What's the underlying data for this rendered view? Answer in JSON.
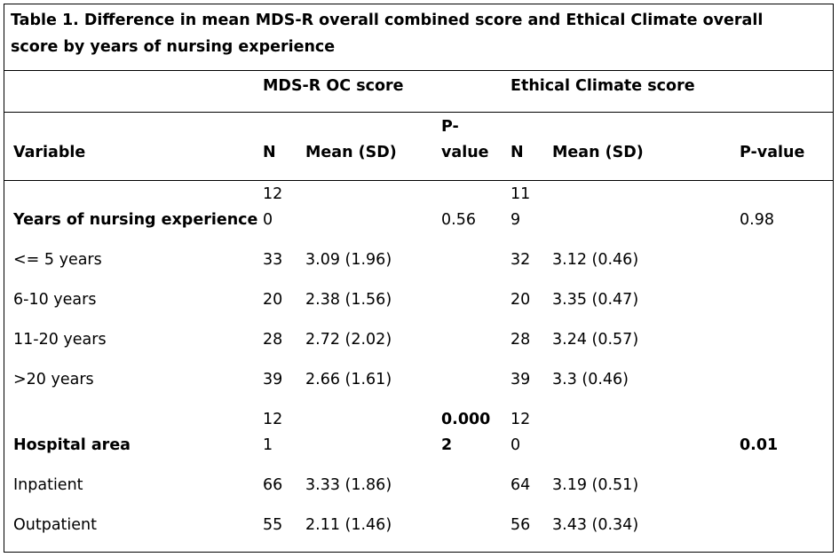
{
  "table": {
    "title": "Table 1. Difference in mean MDS-R overall combined score and Ethical Climate overall score by years of nursing experience",
    "group_headers": {
      "mds": "MDS-R OC score",
      "ethical": "Ethical Climate score"
    },
    "columns": {
      "variable": "Variable",
      "n1": "N",
      "mean1": "Mean (SD)",
      "p1_line1": "P-",
      "p1_line2": "value",
      "n2": "N",
      "mean2": "Mean (SD)",
      "p2": "P-value"
    },
    "groups": [
      {
        "label": "Years of nursing experience",
        "n1_a": "12",
        "n1_b": "0",
        "p1_a": "0.56",
        "p1_b": "",
        "n2_a": "11",
        "n2_b": "9",
        "p2": "0.98",
        "rows": [
          {
            "label": "<= 5 years",
            "n1": "33",
            "mean1": "3.09 (1.96)",
            "n2": "32",
            "mean2": "3.12 (0.46)"
          },
          {
            "label": "6-10 years",
            "n1": "20",
            "mean1": "2.38 (1.56)",
            "n2": "20",
            "mean2": "3.35 (0.47)"
          },
          {
            "label": "11-20 years",
            "n1": "28",
            "mean1": "2.72 (2.02)",
            "n2": "28",
            "mean2": "3.24 (0.57)"
          },
          {
            "label": ">20 years",
            "n1": "39",
            "mean1": "2.66 (1.61)",
            "n2": "39",
            "mean2": "3.3 (0.46)"
          }
        ]
      },
      {
        "label": "Hospital area",
        "n1_a": "12",
        "n1_b": "1",
        "p1_a": "0.000",
        "p1_b": "2",
        "n2_a": "12",
        "n2_b": "0",
        "p2": "0.01",
        "rows": [
          {
            "label": "Inpatient",
            "n1": "66",
            "mean1": "3.33 (1.86)",
            "n2": "64",
            "mean2": "3.19 (0.51)"
          },
          {
            "label": "Outpatient",
            "n1": "55",
            "mean1": "2.11 (1.46)",
            "n2": "56",
            "mean2": "3.43 (0.34)"
          }
        ]
      }
    ]
  }
}
